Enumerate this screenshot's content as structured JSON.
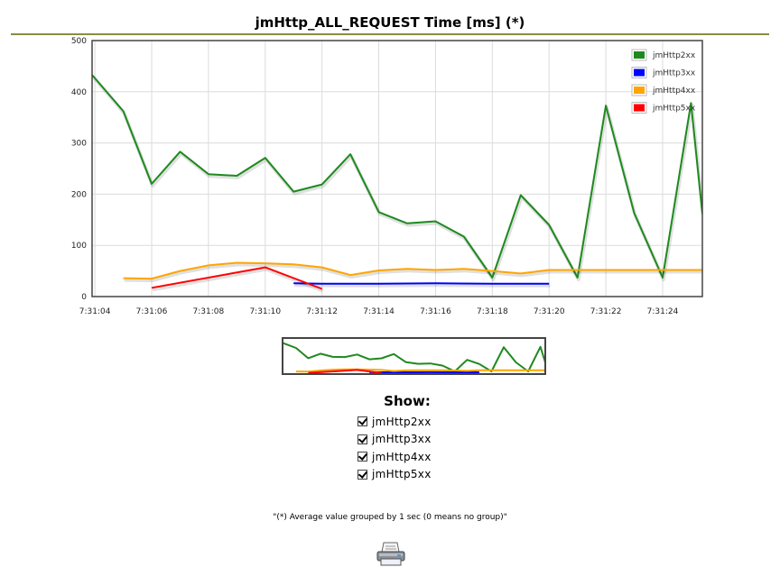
{
  "page": {
    "title": "jmHttp_ALL_REQUEST Time [ms] (*)",
    "footnote": "\"(*) Average value grouped by 1 sec (0 means no group)\""
  },
  "show": {
    "title": "Show:",
    "items": [
      {
        "label": "jmHttp2xx",
        "checked": true
      },
      {
        "label": "jmHttp3xx",
        "checked": true
      },
      {
        "label": "jmHttp4xx",
        "checked": true
      },
      {
        "label": "jmHttp5xx",
        "checked": true
      }
    ]
  },
  "icons": {
    "print": "printer-icon"
  },
  "chart_data": {
    "type": "line",
    "title": "jmHttp_ALL_REQUEST Time [ms] (*)",
    "xlabel": "",
    "ylabel": "",
    "x_unit": "seconds after 7:31:04",
    "xlim": [
      -0.05,
      10.7
    ],
    "ylim": [
      0,
      500
    ],
    "y_ticks": [
      0,
      100,
      200,
      300,
      400,
      500
    ],
    "x_ticks": [
      0,
      1,
      2,
      3,
      4,
      5,
      6,
      7,
      8,
      9,
      10
    ],
    "x_tick_labels": [
      "7:31:04",
      "7:31:06",
      "7:31:08",
      "7:31:10",
      "7:31:12",
      "7:31:14",
      "7:31:16",
      "7:31:18",
      "7:31:20",
      "7:31:22",
      "7:31:24"
    ],
    "grid": true,
    "legend_position": "top-right",
    "series": [
      {
        "name": "jmHttp2xx",
        "color": "#1e8a1e",
        "points": [
          [
            -0.05,
            433
          ],
          [
            0.5,
            362
          ],
          [
            1,
            220
          ],
          [
            1.5,
            283
          ],
          [
            2,
            239
          ],
          [
            2.5,
            236
          ],
          [
            3,
            271
          ],
          [
            3.5,
            205
          ],
          [
            4,
            219
          ],
          [
            4.5,
            278
          ],
          [
            5,
            165
          ],
          [
            5.5,
            143
          ],
          [
            6,
            147
          ],
          [
            6.5,
            117
          ],
          [
            7,
            37
          ],
          [
            7.5,
            198
          ],
          [
            8,
            140
          ],
          [
            8.5,
            37
          ],
          [
            9,
            373
          ],
          [
            9.5,
            163
          ],
          [
            10,
            37
          ],
          [
            10.5,
            378
          ],
          [
            10.7,
            162
          ]
        ]
      },
      {
        "name": "jmHttp3xx",
        "color": "#0000ff",
        "points": [
          [
            3.5,
            26
          ],
          [
            4,
            25
          ],
          [
            5,
            25
          ],
          [
            6,
            26
          ],
          [
            7,
            25
          ],
          [
            8,
            25
          ]
        ]
      },
      {
        "name": "jmHttp4xx",
        "color": "#ffa500",
        "points": [
          [
            0.5,
            36
          ],
          [
            1,
            35
          ],
          [
            1.5,
            50
          ],
          [
            2,
            61
          ],
          [
            2.5,
            66
          ],
          [
            3,
            65
          ],
          [
            3.5,
            63
          ],
          [
            4,
            57
          ],
          [
            4.5,
            42
          ],
          [
            5,
            51
          ],
          [
            5.5,
            54
          ],
          [
            6,
            52
          ],
          [
            6.5,
            54
          ],
          [
            7,
            50
          ],
          [
            7.5,
            45
          ],
          [
            8,
            52
          ],
          [
            8.5,
            52
          ],
          [
            9,
            52
          ],
          [
            9.5,
            52
          ],
          [
            10,
            52
          ],
          [
            10.7,
            52
          ]
        ]
      },
      {
        "name": "jmHttp5xx",
        "color": "#ff0000",
        "points": [
          [
            1,
            17
          ],
          [
            3,
            57
          ],
          [
            4,
            15
          ]
        ]
      }
    ]
  }
}
